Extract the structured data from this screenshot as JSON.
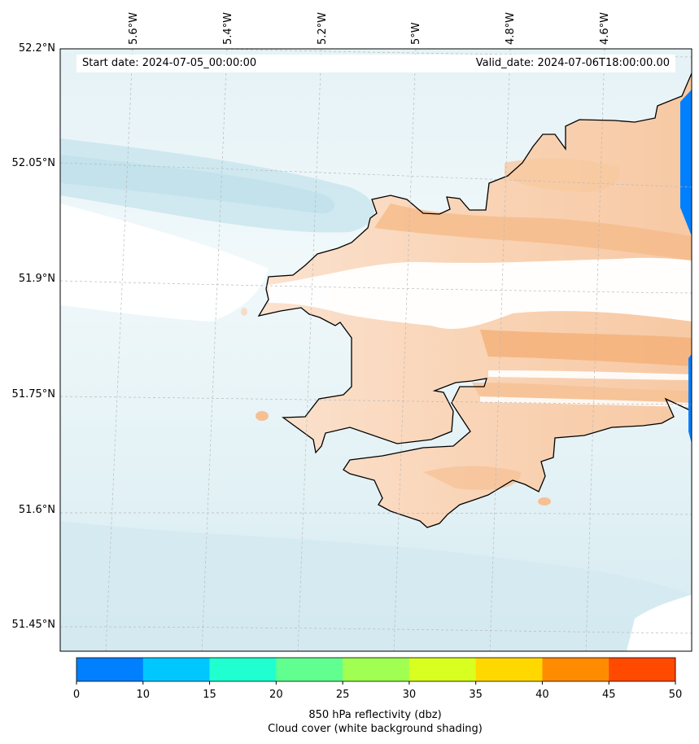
{
  "map": {
    "start_date": "Start date: 2024-07-05_00:00:00",
    "valid_date": "Valid_date: 2024-07-06T18:00:00.00",
    "lat_labels": [
      "52.2°N",
      "52.05°N",
      "51.9°N",
      "51.75°N",
      "51.6°N",
      "51.45°N"
    ],
    "lon_labels": [
      "5.6°W",
      "5.4°W",
      "5.2°W",
      "5°W",
      "4.8°W",
      "4.6°W"
    ],
    "colors": {
      "sea": "#e3f1f5",
      "sea_dark": "#bfe0ea",
      "land_shade": "#f8c8a0",
      "land_dark": "#f4b27a",
      "coastline": "#000000",
      "cloud_white": "#ffffff",
      "reflectivity_low": "#0080ff"
    }
  },
  "colorbar": {
    "colors": [
      "#0080ff",
      "#00c8ff",
      "#20ffd0",
      "#60ff90",
      "#a0ff50",
      "#d8ff20",
      "#ffd800",
      "#ff8c00",
      "#ff4a00"
    ],
    "ticks": [
      "0",
      "10",
      "15",
      "20",
      "25",
      "30",
      "35",
      "40",
      "45",
      "50"
    ],
    "label_line1": "850 hPa reflectivity (dbz)",
    "label_line2": "Cloud cover (white background shading)"
  }
}
